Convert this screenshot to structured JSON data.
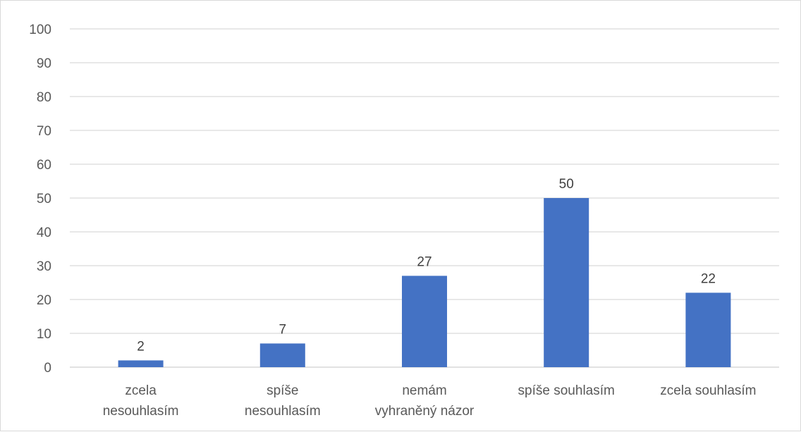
{
  "chart_data": {
    "type": "bar",
    "categories": [
      [
        "zcela",
        "nesouhlasím"
      ],
      [
        "spíše",
        "nesouhlasím"
      ],
      [
        "nemám",
        "vyhraněný názor"
      ],
      [
        "spíše souhlasím"
      ],
      [
        "zcela souhlasím"
      ]
    ],
    "values": [
      2,
      7,
      27,
      50,
      22
    ],
    "data_labels": [
      "2",
      "7",
      "27",
      "50",
      "22"
    ],
    "ylim": [
      0,
      100
    ],
    "yticks": [
      0,
      10,
      20,
      30,
      40,
      50,
      60,
      70,
      80,
      90,
      100
    ],
    "title": "",
    "xlabel": "",
    "ylabel": "",
    "grid": true,
    "legend": "none",
    "bar_color": "#4472C4"
  }
}
